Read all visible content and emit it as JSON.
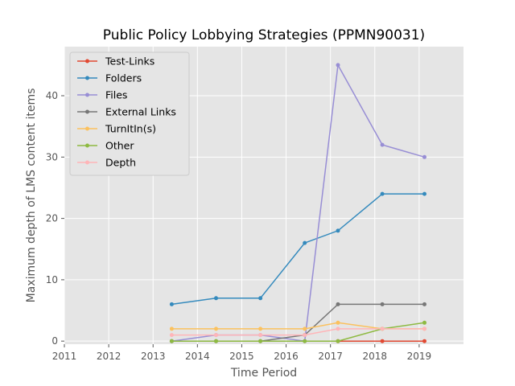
{
  "chart_data": {
    "type": "line",
    "title": "Public Policy Lobbying Strategies (PPMN90031)",
    "xlabel": "Time Period",
    "ylabel": "Maximum depth of LMS content items",
    "xlim": [
      2011,
      2020
    ],
    "ylim": [
      -0.5,
      48
    ],
    "xticks": [
      2011,
      2012,
      2013,
      2014,
      2015,
      2016,
      2017,
      2018,
      2019
    ],
    "yticks": [
      0,
      10,
      20,
      30,
      40
    ],
    "grid": true,
    "legend_position": "top-left",
    "x": [
      2013.42,
      2014.42,
      2015.42,
      2016.42,
      2017.17,
      2018.17,
      2019.12
    ],
    "series": [
      {
        "name": "Test-Links",
        "color": "#E24A33",
        "values": [
          null,
          null,
          null,
          null,
          0,
          0,
          0
        ]
      },
      {
        "name": "Folders",
        "color": "#348ABD",
        "values": [
          6,
          7,
          7,
          16,
          18,
          24,
          24
        ]
      },
      {
        "name": "Files",
        "color": "#988ED5",
        "values": [
          0,
          1,
          1,
          0,
          45,
          32,
          30
        ]
      },
      {
        "name": "External Links",
        "color": "#777777",
        "values": [
          0,
          0,
          0,
          1,
          6,
          6,
          6
        ]
      },
      {
        "name": "TurnItIn(s)",
        "color": "#FBC15E",
        "values": [
          2,
          2,
          2,
          2,
          3,
          2,
          2
        ]
      },
      {
        "name": "Other",
        "color": "#8EBA42",
        "values": [
          0,
          0,
          0,
          0,
          0,
          2,
          3
        ]
      },
      {
        "name": "Depth",
        "color": "#FFB5B8",
        "values": [
          1,
          1,
          1,
          1,
          2,
          2,
          2
        ]
      }
    ]
  }
}
